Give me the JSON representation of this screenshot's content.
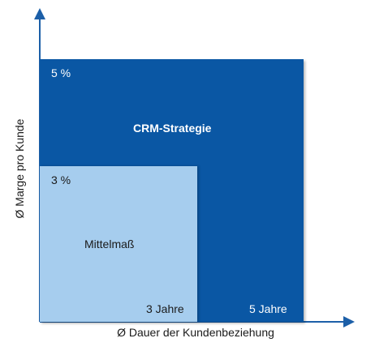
{
  "axes": {
    "x_label": "Ø Dauer der Kundenbeziehung",
    "y_label": "Ø Marge pro Kunde"
  },
  "quadrants": {
    "outer": {
      "margin": "5 %",
      "title": "CRM-Strategie",
      "duration": "5 Jahre",
      "color": "#0a57a4"
    },
    "inner": {
      "margin": "3 %",
      "title": "Mittelmaß",
      "duration": "3 Jahre",
      "color": "#a6cdee"
    }
  },
  "axis_color": "#1c5fa8"
}
